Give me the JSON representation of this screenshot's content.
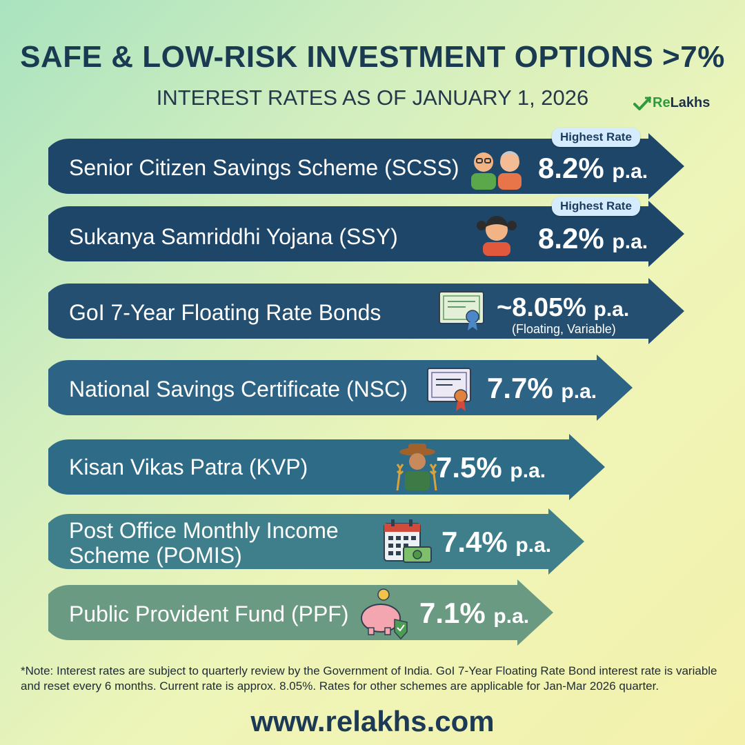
{
  "header": {
    "title": "SAFE & LOW-RISK INVESTMENT OPTIONS >7%",
    "subtitle": "INTEREST RATES AS OF JANUARY 1, 2026",
    "logo_prefix": "Re",
    "logo_suffix": "Lakhs"
  },
  "schemes": [
    {
      "name": "Senior Citizen Savings Scheme (SCSS)",
      "rate": "8.2%",
      "unit": "p.a.",
      "badge": "Highest Rate",
      "icon": "senior-couple-icon",
      "color": "#1e4668"
    },
    {
      "name": "Sukanya Samriddhi Yojana (SSY)",
      "rate": "8.2%",
      "unit": "p.a.",
      "badge": "Highest Rate",
      "icon": "girl-icon",
      "color": "#1e4668"
    },
    {
      "name": "GoI 7-Year Floating Rate Bonds",
      "rate": "~8.05%",
      "unit": "p.a.",
      "note": "(Floating, Variable)",
      "icon": "bond-certificate-icon",
      "color": "#244f70"
    },
    {
      "name": "National Savings Certificate (NSC)",
      "rate": "7.7%",
      "unit": "p.a.",
      "icon": "certificate-icon",
      "color": "#2d6384"
    },
    {
      "name": "Kisan Vikas Patra (KVP)",
      "rate": "7.5%",
      "unit": "p.a.",
      "icon": "farmer-icon",
      "color": "#2e6b86"
    },
    {
      "name_line1": "Post Office Monthly Income",
      "name_line2": "Scheme (POMIS)",
      "rate": "7.4%",
      "unit": "p.a.",
      "icon": "calendar-money-icon",
      "color": "#3e7f8b"
    },
    {
      "name": "Public Provident Fund (PPF)",
      "rate": "7.1%",
      "unit": "p.a.",
      "icon": "piggy-bank-shield-icon",
      "color": "#6a9a82"
    }
  ],
  "footer": {
    "note": "*Note: Interest rates are subject to quarterly review by the Government of India. GoI 7-Year Floating Rate Bond interest rate is variable and reset every 6 months. Current rate is approx. 8.05%. Rates for other schemes are applicable for Jan-Mar 2026 quarter.",
    "url": "www.relakhs.com"
  }
}
